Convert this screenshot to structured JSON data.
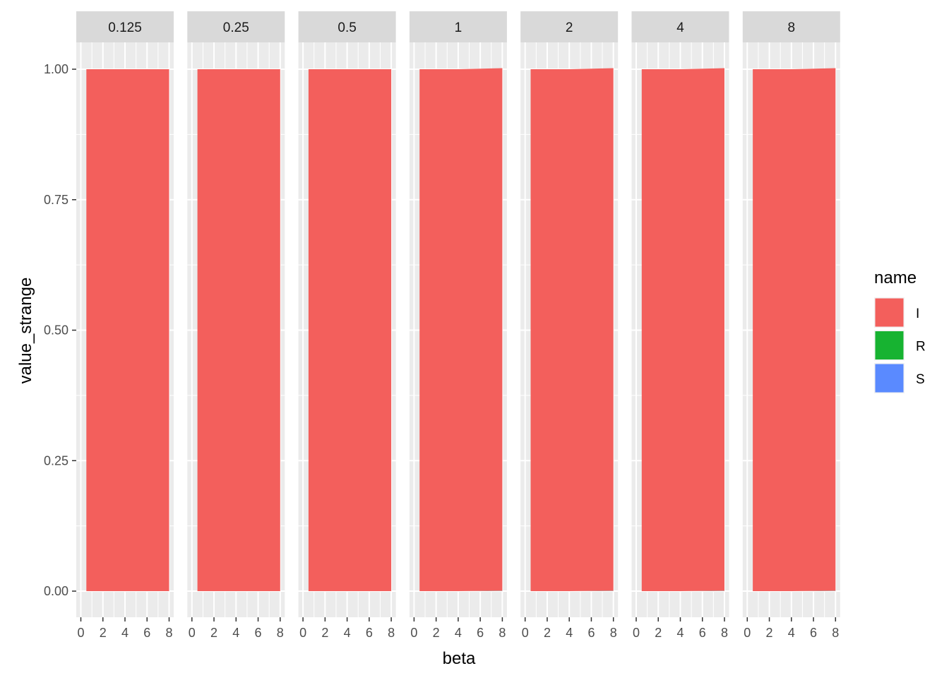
{
  "chart_data": {
    "type": "area",
    "facet_by": "facet value",
    "facets": [
      {
        "label": "0.125",
        "x": [
          0.5,
          8
        ],
        "series": [
          {
            "name": "I",
            "values": [
              1.0,
              1.0
            ]
          },
          {
            "name": "R",
            "values": [
              0.0,
              0.0
            ]
          },
          {
            "name": "S",
            "values": [
              0.0,
              0.0
            ]
          }
        ]
      },
      {
        "label": "0.25",
        "x": [
          0.5,
          8
        ],
        "series": [
          {
            "name": "I",
            "values": [
              1.0,
              1.0
            ]
          },
          {
            "name": "R",
            "values": [
              0.0,
              0.0
            ]
          },
          {
            "name": "S",
            "values": [
              0.0,
              0.0
            ]
          }
        ]
      },
      {
        "label": "0.5",
        "x": [
          0.5,
          8
        ],
        "series": [
          {
            "name": "I",
            "values": [
              1.0,
              1.0
            ]
          },
          {
            "name": "R",
            "values": [
              0.0,
              0.0
            ]
          },
          {
            "name": "S",
            "values": [
              0.0,
              0.0
            ]
          }
        ]
      },
      {
        "label": "1",
        "x": [
          0.5,
          4,
          8
        ],
        "series": [
          {
            "name": "I",
            "values": [
              1.0,
              1.0,
              1.001
            ]
          },
          {
            "name": "R",
            "values": [
              0.0,
              0.0,
              0.0
            ]
          },
          {
            "name": "S",
            "values": [
              0.0,
              0.0,
              0.001
            ]
          }
        ]
      },
      {
        "label": "2",
        "x": [
          0.5,
          4,
          8
        ],
        "series": [
          {
            "name": "I",
            "values": [
              1.0,
              1.0,
              1.001
            ]
          },
          {
            "name": "R",
            "values": [
              0.0,
              0.0,
              0.0
            ]
          },
          {
            "name": "S",
            "values": [
              0.0,
              0.0,
              0.001
            ]
          }
        ]
      },
      {
        "label": "4",
        "x": [
          0.5,
          4,
          8
        ],
        "series": [
          {
            "name": "I",
            "values": [
              1.0,
              1.0,
              1.001
            ]
          },
          {
            "name": "R",
            "values": [
              0.0,
              0.0,
              0.0
            ]
          },
          {
            "name": "S",
            "values": [
              0.0,
              0.0,
              0.001
            ]
          }
        ]
      },
      {
        "label": "8",
        "x": [
          0.5,
          4,
          8
        ],
        "series": [
          {
            "name": "I",
            "values": [
              1.0,
              1.0,
              1.001
            ]
          },
          {
            "name": "R",
            "values": [
              0.0,
              0.0,
              0.0
            ]
          },
          {
            "name": "S",
            "values": [
              0.0,
              0.0,
              0.001
            ]
          }
        ]
      }
    ],
    "xlabel": "beta",
    "ylabel": "value_strange",
    "xlim": [
      0,
      8
    ],
    "ylim": [
      0,
      1.0
    ],
    "x_ticks": [
      "0",
      "2",
      "4",
      "6",
      "8"
    ],
    "y_ticks": [
      "0.00",
      "0.25",
      "0.50",
      "0.75",
      "1.00"
    ],
    "grid": true,
    "legend": {
      "title": "name",
      "position": "right",
      "entries": [
        {
          "label": "I",
          "color": "#F8766D"
        },
        {
          "label": "R",
          "color": "#00BA38"
        },
        {
          "label": "S",
          "color": "#619CFF"
        }
      ]
    },
    "colors": {
      "I": "#F35F5C",
      "R": "#17B331",
      "S": "#5A8AFF",
      "panel": "#EBEBEB",
      "strip": "#D9D9D9",
      "grid": "#FFFFFF"
    }
  }
}
